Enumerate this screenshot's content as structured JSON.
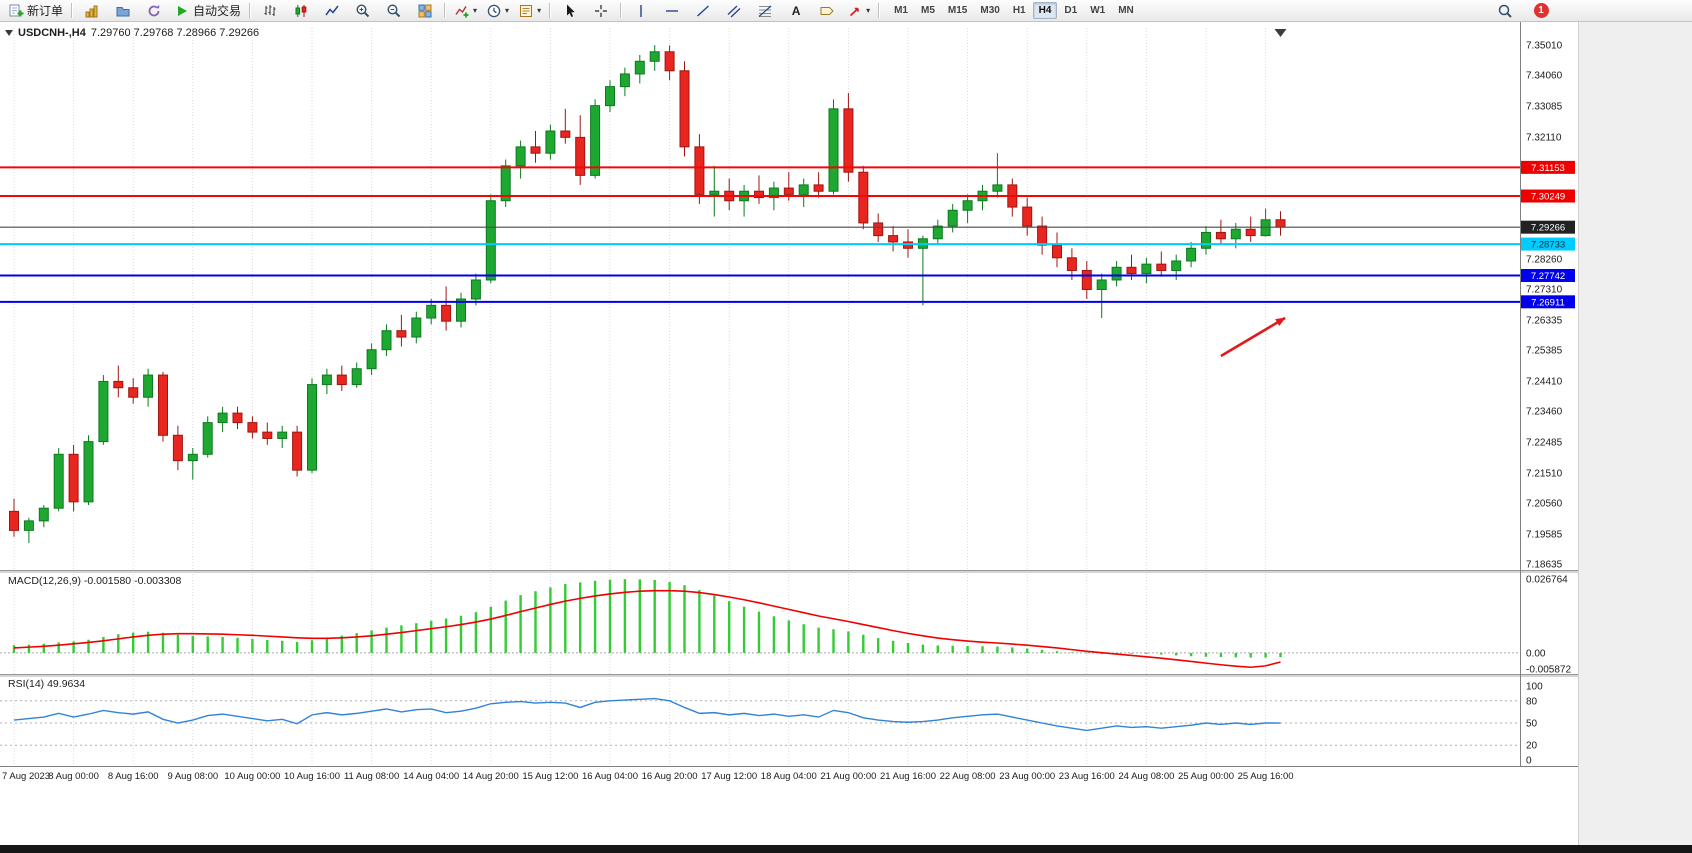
{
  "toolbar": {
    "new_order_label": "新订单",
    "autotrading_label": "自动交易",
    "text_tool": "A",
    "timeframes": [
      "M1",
      "M5",
      "M15",
      "M30",
      "H1",
      "H4",
      "D1",
      "W1",
      "MN"
    ],
    "active_timeframe": "H4",
    "notification_count": "1"
  },
  "chart": {
    "symbol_title": "USDCNH-,H4",
    "ohlc_text": "7.29760 7.29768 7.28966 7.29266",
    "macd_title": "MACD(12,26,9) -0.001580 -0.003308",
    "rsi_title": "RSI(14) 49.9634"
  },
  "colors": {
    "bull": "#1ea832",
    "bull_border": "#0c7a1e",
    "bear": "#e8261f",
    "bear_border": "#a01510",
    "macd_hist": "#33cc33",
    "macd_signal": "#f00000",
    "rsi_line": "#3183d6"
  },
  "annotation_arrow": {
    "color": "#e11b1b",
    "from_candle": 81,
    "from_price": 7.252,
    "to_candle": 85.3,
    "to_price": 7.264
  },
  "chart_data": [
    {
      "type": "candlestick",
      "symbol": "USDCNH-",
      "timeframe": "H4",
      "ohlc_current": {
        "open": "7.29760",
        "high": "7.29768",
        "low": "7.28966",
        "close": "7.29266"
      },
      "ylim": [
        7.1845,
        7.3555
      ],
      "grid": "vertical-dotted",
      "x_label_every": 4,
      "x_labels": [
        "7 Aug 2023",
        "8 Aug 00:00",
        "8 Aug 16:00",
        "9 Aug 08:00",
        "10 Aug 00:00",
        "10 Aug 16:00",
        "11 Aug 08:00",
        "14 Aug 04:00",
        "14 Aug 20:00",
        "15 Aug 12:00",
        "16 Aug 04:00",
        "16 Aug 20:00",
        "17 Aug 12:00",
        "18 Aug 04:00",
        "21 Aug 00:00",
        "21 Aug 16:00",
        "22 Aug 08:00",
        "23 Aug 00:00",
        "23 Aug 16:00",
        "24 Aug 08:00",
        "25 Aug 00:00",
        "25 Aug 16:00"
      ],
      "price_axis_labels": [
        "7.35010",
        "7.34060",
        "7.33085",
        "7.32110",
        "7.28260",
        "7.27310",
        "7.26335",
        "7.25385",
        "7.24410",
        "7.23460",
        "7.22485",
        "7.21510",
        "7.20560",
        "7.19585",
        "7.18635"
      ],
      "price_tags": [
        {
          "text": "7.31153",
          "price": 7.31153,
          "bg": "#ef0000",
          "fg": "#ffffff"
        },
        {
          "text": "7.30249",
          "price": 7.30249,
          "bg": "#ef0000",
          "fg": "#ffffff"
        },
        {
          "text": "7.29266",
          "price": 7.29266,
          "bg": "#222222",
          "fg": "#ffffff"
        },
        {
          "text": "7.28733",
          "price": 7.28733,
          "bg": "#00ccff",
          "fg": "#032e3a"
        },
        {
          "text": "7.27742",
          "price": 7.27742,
          "bg": "#0000ee",
          "fg": "#ffffff"
        },
        {
          "text": "7.26911",
          "price": 7.26911,
          "bg": "#0000ee",
          "fg": "#ffffff"
        }
      ],
      "hlines": [
        {
          "price": 7.31153,
          "color": "#f40606",
          "width": 2
        },
        {
          "price": 7.30249,
          "color": "#f40606",
          "width": 2
        },
        {
          "price": 7.29266,
          "color": "#4a4a4a",
          "width": 1.2
        },
        {
          "price": 7.28733,
          "color": "#00ccff",
          "width": 2
        },
        {
          "price": 7.27742,
          "color": "#0000ee",
          "width": 2
        },
        {
          "price": 7.26911,
          "color": "#0000ee",
          "width": 2
        }
      ],
      "candles": [
        [
          7.203,
          7.207,
          7.195,
          7.197
        ],
        [
          7.197,
          7.201,
          7.193,
          7.2
        ],
        [
          7.2,
          7.205,
          7.198,
          7.204
        ],
        [
          7.204,
          7.223,
          7.203,
          7.221
        ],
        [
          7.221,
          7.224,
          7.203,
          7.206
        ],
        [
          7.206,
          7.227,
          7.205,
          7.225
        ],
        [
          7.225,
          7.246,
          7.224,
          7.244
        ],
        [
          7.244,
          7.249,
          7.239,
          7.242
        ],
        [
          7.242,
          7.245,
          7.237,
          7.239
        ],
        [
          7.239,
          7.248,
          7.236,
          7.246
        ],
        [
          7.246,
          7.247,
          7.225,
          7.227
        ],
        [
          7.227,
          7.23,
          7.216,
          7.219
        ],
        [
          7.219,
          7.223,
          7.213,
          7.221
        ],
        [
          7.221,
          7.233,
          7.22,
          7.231
        ],
        [
          7.231,
          7.236,
          7.228,
          7.234
        ],
        [
          7.234,
          7.236,
          7.229,
          7.231
        ],
        [
          7.231,
          7.233,
          7.226,
          7.228
        ],
        [
          7.228,
          7.231,
          7.224,
          7.226
        ],
        [
          7.226,
          7.23,
          7.223,
          7.228
        ],
        [
          7.228,
          7.23,
          7.214,
          7.216
        ],
        [
          7.216,
          7.245,
          7.215,
          7.243
        ],
        [
          7.243,
          7.248,
          7.24,
          7.246
        ],
        [
          7.246,
          7.249,
          7.241,
          7.243
        ],
        [
          7.243,
          7.25,
          7.242,
          7.248
        ],
        [
          7.248,
          7.256,
          7.246,
          7.254
        ],
        [
          7.254,
          7.262,
          7.252,
          7.26
        ],
        [
          7.26,
          7.265,
          7.255,
          7.258
        ],
        [
          7.258,
          7.266,
          7.256,
          7.264
        ],
        [
          7.264,
          7.27,
          7.262,
          7.268
        ],
        [
          7.268,
          7.274,
          7.26,
          7.263
        ],
        [
          7.263,
          7.272,
          7.261,
          7.27
        ],
        [
          7.27,
          7.278,
          7.268,
          7.276
        ],
        [
          7.276,
          7.303,
          7.275,
          7.301
        ],
        [
          7.301,
          7.314,
          7.299,
          7.312
        ],
        [
          7.312,
          7.32,
          7.308,
          7.318
        ],
        [
          7.318,
          7.323,
          7.313,
          7.316
        ],
        [
          7.316,
          7.325,
          7.314,
          7.323
        ],
        [
          7.323,
          7.33,
          7.319,
          7.321
        ],
        [
          7.321,
          7.328,
          7.306,
          7.309
        ],
        [
          7.309,
          7.333,
          7.308,
          7.331
        ],
        [
          7.331,
          7.339,
          7.329,
          7.337
        ],
        [
          7.337,
          7.343,
          7.334,
          7.341
        ],
        [
          7.341,
          7.347,
          7.338,
          7.345
        ],
        [
          7.345,
          7.3501,
          7.342,
          7.348
        ],
        [
          7.348,
          7.35,
          7.339,
          7.342
        ],
        [
          7.342,
          7.345,
          7.315,
          7.318
        ],
        [
          7.318,
          7.322,
          7.3,
          7.303
        ],
        [
          7.303,
          7.312,
          7.296,
          7.304
        ],
        [
          7.304,
          7.308,
          7.298,
          7.301
        ],
        [
          7.301,
          7.306,
          7.296,
          7.304
        ],
        [
          7.304,
          7.309,
          7.3,
          7.302
        ],
        [
          7.302,
          7.307,
          7.298,
          7.305
        ],
        [
          7.305,
          7.31,
          7.301,
          7.303
        ],
        [
          7.303,
          7.308,
          7.299,
          7.306
        ],
        [
          7.306,
          7.31,
          7.302,
          7.304
        ],
        [
          7.304,
          7.333,
          7.303,
          7.33
        ],
        [
          7.33,
          7.335,
          7.307,
          7.31
        ],
        [
          7.31,
          7.312,
          7.292,
          7.294
        ],
        [
          7.294,
          7.297,
          7.288,
          7.29
        ],
        [
          7.29,
          7.293,
          7.285,
          7.288
        ],
        [
          7.288,
          7.292,
          7.283,
          7.286
        ],
        [
          7.286,
          7.29,
          7.268,
          7.289
        ],
        [
          7.289,
          7.295,
          7.287,
          7.293
        ],
        [
          7.293,
          7.3,
          7.291,
          7.298
        ],
        [
          7.298,
          7.303,
          7.294,
          7.301
        ],
        [
          7.301,
          7.306,
          7.298,
          7.304
        ],
        [
          7.304,
          7.316,
          7.302,
          7.306
        ],
        [
          7.306,
          7.308,
          7.296,
          7.299
        ],
        [
          7.299,
          7.302,
          7.29,
          7.293
        ],
        [
          7.293,
          7.296,
          7.284,
          7.287
        ],
        [
          7.287,
          7.291,
          7.28,
          7.283
        ],
        [
          7.283,
          7.286,
          7.276,
          7.279
        ],
        [
          7.279,
          7.282,
          7.27,
          7.273
        ],
        [
          7.273,
          7.278,
          7.264,
          7.276
        ],
        [
          7.276,
          7.282,
          7.274,
          7.28
        ],
        [
          7.28,
          7.284,
          7.276,
          7.278
        ],
        [
          7.278,
          7.283,
          7.275,
          7.281
        ],
        [
          7.281,
          7.285,
          7.277,
          7.279
        ],
        [
          7.279,
          7.284,
          7.276,
          7.282
        ],
        [
          7.282,
          7.288,
          7.28,
          7.286
        ],
        [
          7.286,
          7.293,
          7.284,
          7.291
        ],
        [
          7.291,
          7.295,
          7.287,
          7.289
        ],
        [
          7.289,
          7.294,
          7.286,
          7.292
        ],
        [
          7.292,
          7.296,
          7.288,
          7.29
        ],
        [
          7.29,
          7.2985,
          7.2897,
          7.295
        ],
        [
          7.295,
          7.2977,
          7.29,
          7.2927
        ]
      ]
    },
    {
      "type": "bar",
      "title": "MACD(12,26,9)",
      "current_values": [
        "-0.001580",
        "-0.003308"
      ],
      "ylim": [
        -0.0062,
        0.0272
      ],
      "axis_labels": [
        {
          "value": 0.026764,
          "text": "0.026764"
        },
        {
          "value": 0,
          "text": "0.00"
        },
        {
          "value": -0.005872,
          "text": "-0.005872"
        }
      ],
      "values": [
        0.0028,
        0.003,
        0.0033,
        0.0038,
        0.0042,
        0.0048,
        0.0058,
        0.0068,
        0.0074,
        0.0077,
        0.0073,
        0.0066,
        0.0062,
        0.006,
        0.0058,
        0.0055,
        0.0051,
        0.0047,
        0.0044,
        0.004,
        0.0046,
        0.0055,
        0.0063,
        0.0072,
        0.0082,
        0.0092,
        0.01,
        0.0108,
        0.0117,
        0.0125,
        0.0135,
        0.0148,
        0.0168,
        0.019,
        0.021,
        0.0224,
        0.0238,
        0.025,
        0.0256,
        0.0262,
        0.0266,
        0.0268,
        0.0267,
        0.0265,
        0.0258,
        0.0246,
        0.0228,
        0.0208,
        0.0188,
        0.0168,
        0.015,
        0.0133,
        0.0118,
        0.0104,
        0.0092,
        0.0086,
        0.0078,
        0.0066,
        0.0054,
        0.0044,
        0.0036,
        0.003,
        0.0027,
        0.0026,
        0.0025,
        0.0024,
        0.0023,
        0.002,
        0.0016,
        0.0011,
        0.0006,
        0.0002,
        -0.0002,
        -0.0004,
        -0.0004,
        -0.0003,
        -0.0004,
        -0.0006,
        -0.0009,
        -0.0012,
        -0.0014,
        -0.0015,
        -0.0016,
        -0.0017,
        -0.0017,
        -0.00158
      ],
      "signal": [
        0.0018,
        0.0021,
        0.0024,
        0.0028,
        0.0033,
        0.0038,
        0.0044,
        0.0051,
        0.0058,
        0.0064,
        0.0068,
        0.007,
        0.007,
        0.0069,
        0.0068,
        0.0066,
        0.0064,
        0.0061,
        0.0058,
        0.0055,
        0.0053,
        0.0053,
        0.0055,
        0.0058,
        0.0062,
        0.0068,
        0.0074,
        0.0081,
        0.0088,
        0.0095,
        0.0103,
        0.0112,
        0.0123,
        0.0136,
        0.015,
        0.0163,
        0.0176,
        0.0188,
        0.0198,
        0.0207,
        0.0214,
        0.022,
        0.0224,
        0.0226,
        0.0226,
        0.0224,
        0.0219,
        0.0212,
        0.0203,
        0.0193,
        0.0182,
        0.017,
        0.0158,
        0.0146,
        0.0134,
        0.0124,
        0.0114,
        0.0103,
        0.0092,
        0.0081,
        0.0071,
        0.0062,
        0.0054,
        0.0048,
        0.0043,
        0.0039,
        0.0036,
        0.0032,
        0.0028,
        0.0023,
        0.0018,
        0.0012,
        0.0006,
        0.0001,
        -0.0004,
        -0.0009,
        -0.0014,
        -0.0019,
        -0.0025,
        -0.0031,
        -0.0037,
        -0.0043,
        -0.0048,
        -0.0052,
        -0.0047,
        -0.003308
      ]
    },
    {
      "type": "line",
      "title": "RSI(14)",
      "current_value": 49.9634,
      "ylim": [
        0,
        100
      ],
      "levels": [
        80,
        50,
        20
      ],
      "axis_labels": [
        {
          "value": 100,
          "text": "100"
        },
        {
          "value": 80,
          "text": "80"
        },
        {
          "value": 50,
          "text": "50"
        },
        {
          "value": 20,
          "text": "20"
        },
        {
          "value": 0,
          "text": "0"
        }
      ],
      "values": [
        54,
        56,
        58,
        63,
        58,
        62,
        67,
        64,
        62,
        65,
        55,
        50,
        54,
        60,
        62,
        59,
        56,
        53,
        55,
        49,
        61,
        64,
        61,
        63,
        66,
        69,
        65,
        68,
        69,
        64,
        66,
        70,
        76,
        78,
        79,
        77,
        78,
        77,
        71,
        78,
        80,
        81,
        82,
        83,
        80,
        71,
        63,
        64,
        61,
        63,
        60,
        62,
        59,
        61,
        58,
        67,
        64,
        57,
        54,
        52,
        51,
        52,
        54,
        57,
        59,
        61,
        62,
        58,
        54,
        50,
        46,
        43,
        40,
        43,
        46,
        44,
        45,
        43,
        45,
        47,
        50,
        48,
        50,
        48,
        50,
        49.96
      ]
    }
  ]
}
